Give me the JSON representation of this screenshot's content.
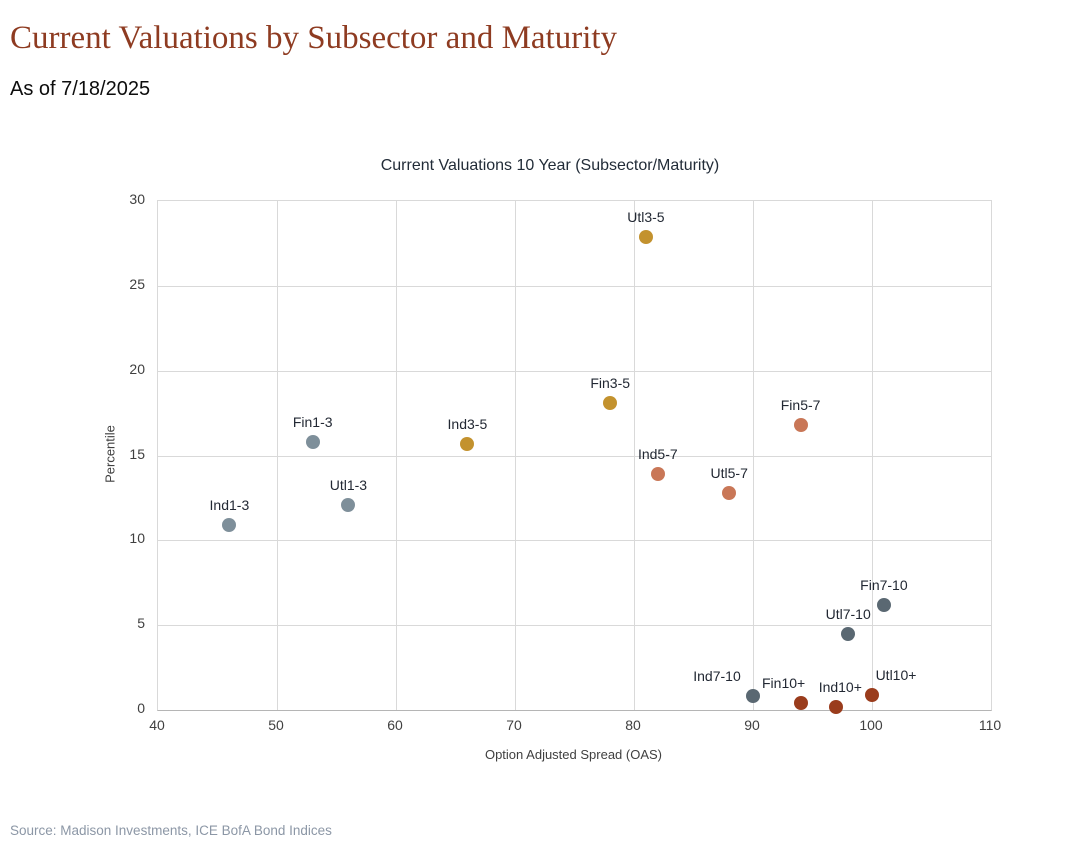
{
  "page": {
    "title": "Current Valuations by Subsector and Maturity",
    "as_of": "As of 7/18/2025",
    "source": "Source: Madison Investments, ICE BofA Bond Indices"
  },
  "colors": {
    "title_text": "#8e3b21",
    "chart_text": "#222c38",
    "tick_text": "#404040",
    "gridline": "#d9d9d9",
    "axis_line": "#b5b5b5",
    "source_text": "#8c97a6",
    "maturity_1_3": "#7e8f9a",
    "maturity_3_5": "#c3922e",
    "maturity_5_7": "#c97757",
    "maturity_7_10": "#5a6872",
    "maturity_10plus": "#9a3c1c"
  },
  "chart_data": {
    "type": "scatter",
    "title": "Current Valuations 10 Year (Subsector/Maturity)",
    "xlabel": "Option Adjusted Spread (OAS)",
    "ylabel": "Percentile",
    "xlim": [
      40,
      110
    ],
    "ylim": [
      0,
      30
    ],
    "x_ticks": [
      40,
      50,
      60,
      70,
      80,
      90,
      100,
      110
    ],
    "y_ticks": [
      0,
      5,
      10,
      15,
      20,
      25,
      30
    ],
    "grid": true,
    "legend": "none (points labeled directly)",
    "points": [
      {
        "label": "Ind1-3",
        "x": 46,
        "y": 10.9,
        "maturity": "1-3",
        "color": "#7e8f9a",
        "label_dx": 0
      },
      {
        "label": "Fin1-3",
        "x": 53,
        "y": 15.8,
        "maturity": "1-3",
        "color": "#7e8f9a",
        "label_dx": 0
      },
      {
        "label": "Utl1-3",
        "x": 56,
        "y": 12.1,
        "maturity": "1-3",
        "color": "#7e8f9a",
        "label_dx": 0
      },
      {
        "label": "Ind3-5",
        "x": 66,
        "y": 15.7,
        "maturity": "3-5",
        "color": "#c3922e",
        "label_dx": 0
      },
      {
        "label": "Fin3-5",
        "x": 78,
        "y": 18.1,
        "maturity": "3-5",
        "color": "#c3922e",
        "label_dx": 0
      },
      {
        "label": "Utl3-5",
        "x": 81,
        "y": 27.9,
        "maturity": "3-5",
        "color": "#c3922e",
        "label_dx": 0
      },
      {
        "label": "Ind5-7",
        "x": 82,
        "y": 13.9,
        "maturity": "5-7",
        "color": "#c97757",
        "label_dx": 0
      },
      {
        "label": "Utl5-7",
        "x": 88,
        "y": 12.8,
        "maturity": "5-7",
        "color": "#c97757",
        "label_dx": 0
      },
      {
        "label": "Fin5-7",
        "x": 94,
        "y": 16.8,
        "maturity": "5-7",
        "color": "#c97757",
        "label_dx": 0
      },
      {
        "label": "Ind7-10",
        "x": 90,
        "y": 0.8,
        "maturity": "7-10",
        "color": "#5a6872",
        "label_dx": -36
      },
      {
        "label": "Utl7-10",
        "x": 98,
        "y": 4.5,
        "maturity": "7-10",
        "color": "#5a6872",
        "label_dx": 0
      },
      {
        "label": "Fin7-10",
        "x": 101,
        "y": 6.2,
        "maturity": "7-10",
        "color": "#5a6872",
        "label_dx": 0
      },
      {
        "label": "Fin10+",
        "x": 94,
        "y": 0.4,
        "maturity": "10+",
        "color": "#9a3c1c",
        "label_dx": -17
      },
      {
        "label": "Ind10+",
        "x": 97,
        "y": 0.2,
        "maturity": "10+",
        "color": "#9a3c1c",
        "label_dx": 4
      },
      {
        "label": "Utl10+",
        "x": 100,
        "y": 0.9,
        "maturity": "10+",
        "color": "#9a3c1c",
        "label_dx": 24
      }
    ]
  }
}
